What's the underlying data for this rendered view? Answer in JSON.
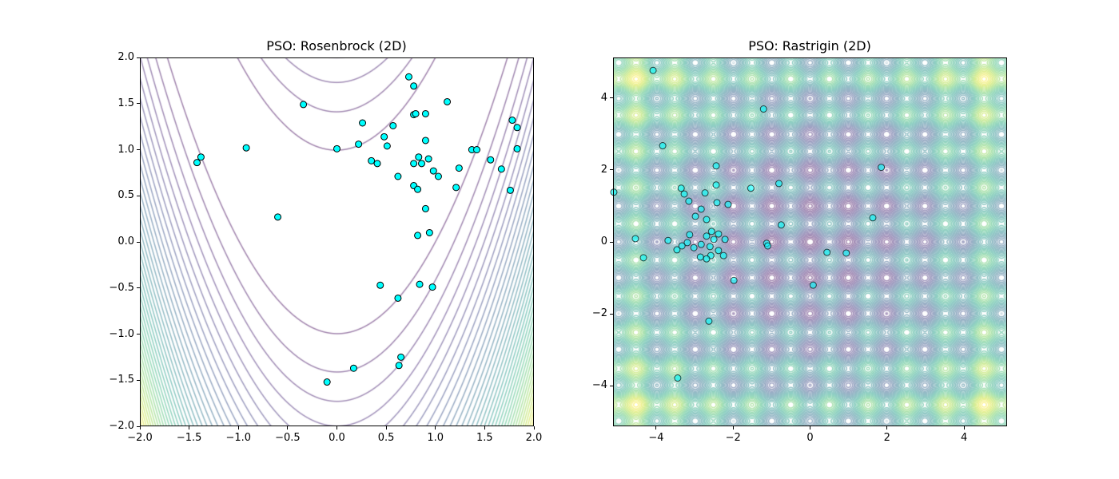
{
  "chart_data": [
    {
      "type": "scatter",
      "title": "PSO: Rosenbrock (2D)",
      "background": "contour",
      "function": "rosenbrock",
      "contour_levels_step": 100,
      "contour_vrange": [
        0,
        3600
      ],
      "colormap": "viridis",
      "xlim": [
        -2.0,
        2.0
      ],
      "ylim": [
        -2.0,
        2.0
      ],
      "xticks": [
        "−2.0",
        "−1.5",
        "−1.0",
        "−0.5",
        "0.0",
        "0.5",
        "1.0",
        "1.5",
        "2.0"
      ],
      "yticks": [
        "−2.0",
        "−1.5",
        "−1.0",
        "−0.5",
        "0.0",
        "0.5",
        "1.0",
        "1.5",
        "2.0"
      ],
      "xtick_values": [
        -2,
        -1.5,
        -1,
        -0.5,
        0,
        0.5,
        1,
        1.5,
        2
      ],
      "ytick_values": [
        -2,
        -1.5,
        -1,
        -0.5,
        0,
        0.5,
        1,
        1.5,
        2
      ],
      "point_color": "#00ffff",
      "point_alpha": 1.0,
      "points": [
        [
          -1.42,
          0.86
        ],
        [
          -1.38,
          0.92
        ],
        [
          -0.92,
          1.02
        ],
        [
          -0.34,
          1.49
        ],
        [
          -0.6,
          0.27
        ],
        [
          0.0,
          1.01
        ],
        [
          0.22,
          1.06
        ],
        [
          0.26,
          1.29
        ],
        [
          0.35,
          0.88
        ],
        [
          0.41,
          0.85
        ],
        [
          0.48,
          1.14
        ],
        [
          0.51,
          1.04
        ],
        [
          0.57,
          1.26
        ],
        [
          0.62,
          0.71
        ],
        [
          0.73,
          1.79
        ],
        [
          0.78,
          1.69
        ],
        [
          0.78,
          1.38
        ],
        [
          0.8,
          1.39
        ],
        [
          0.78,
          0.85
        ],
        [
          0.83,
          0.92
        ],
        [
          0.86,
          0.85
        ],
        [
          0.78,
          0.61
        ],
        [
          0.82,
          0.57
        ],
        [
          0.9,
          1.39
        ],
        [
          0.9,
          1.1
        ],
        [
          0.93,
          0.9
        ],
        [
          0.98,
          0.77
        ],
        [
          1.03,
          0.71
        ],
        [
          1.12,
          1.52
        ],
        [
          1.24,
          0.8
        ],
        [
          1.21,
          0.59
        ],
        [
          1.37,
          1.0
        ],
        [
          1.42,
          1.0
        ],
        [
          1.56,
          0.89
        ],
        [
          1.67,
          0.79
        ],
        [
          1.78,
          1.32
        ],
        [
          1.83,
          1.24
        ],
        [
          1.83,
          1.01
        ],
        [
          1.76,
          0.56
        ],
        [
          0.9,
          0.36
        ],
        [
          0.94,
          0.1
        ],
        [
          0.82,
          0.07
        ],
        [
          0.44,
          -0.47
        ],
        [
          0.84,
          -0.46
        ],
        [
          0.97,
          -0.49
        ],
        [
          0.62,
          -0.61
        ],
        [
          0.65,
          -1.25
        ],
        [
          0.63,
          -1.34
        ],
        [
          0.17,
          -1.37
        ],
        [
          -0.1,
          -1.52
        ]
      ]
    },
    {
      "type": "scatter",
      "title": "PSO: Rastrigin (2D)",
      "background": "contour",
      "function": "rastrigin",
      "contour_levels_step": 1.6,
      "contour_vrange": [
        0,
        80.7
      ],
      "colormap": "viridis",
      "xlim": [
        -5.12,
        5.12
      ],
      "ylim": [
        -5.12,
        5.12
      ],
      "xticks": [
        "−4",
        "−2",
        "0",
        "2",
        "4"
      ],
      "yticks": [
        "−4",
        "−2",
        "0",
        "2",
        "4"
      ],
      "xtick_values": [
        -4,
        -2,
        0,
        2,
        4
      ],
      "ytick_values": [
        -4,
        -2,
        0,
        2,
        4
      ],
      "point_color": "#00ffff",
      "point_alpha": 0.6,
      "points": [
        [
          -4.08,
          4.76
        ],
        [
          -3.83,
          2.67
        ],
        [
          -1.21,
          3.69
        ],
        [
          -5.1,
          1.38
        ],
        [
          -4.54,
          0.09
        ],
        [
          -4.33,
          -0.44
        ],
        [
          -3.69,
          0.04
        ],
        [
          -3.44,
          -3.78
        ],
        [
          -3.35,
          1.49
        ],
        [
          -3.27,
          1.33
        ],
        [
          -3.15,
          1.13
        ],
        [
          -3.13,
          0.2
        ],
        [
          -3.19,
          -0.02
        ],
        [
          -3.33,
          -0.11
        ],
        [
          -3.46,
          -0.22
        ],
        [
          -2.98,
          0.71
        ],
        [
          -2.83,
          0.91
        ],
        [
          -3.02,
          -0.16
        ],
        [
          -2.83,
          -0.07
        ],
        [
          -2.85,
          -0.42
        ],
        [
          -2.73,
          1.36
        ],
        [
          -2.69,
          0.62
        ],
        [
          -2.69,
          0.16
        ],
        [
          -2.56,
          0.29
        ],
        [
          -2.5,
          0.07
        ],
        [
          -2.58,
          -0.38
        ],
        [
          -2.69,
          -0.47
        ],
        [
          -2.6,
          -0.13
        ],
        [
          -2.44,
          1.58
        ],
        [
          -2.44,
          2.11
        ],
        [
          -2.42,
          1.09
        ],
        [
          -2.38,
          0.22
        ],
        [
          -2.38,
          -0.24
        ],
        [
          -2.25,
          -0.38
        ],
        [
          -2.21,
          0.07
        ],
        [
          -2.13,
          1.04
        ],
        [
          -1.98,
          -1.07
        ],
        [
          -2.63,
          -2.2
        ],
        [
          -1.54,
          1.49
        ],
        [
          -1.13,
          -0.04
        ],
        [
          -1.1,
          -0.11
        ],
        [
          -0.81,
          1.62
        ],
        [
          -0.75,
          0.47
        ],
        [
          0.08,
          -1.2
        ],
        [
          0.44,
          -0.29
        ],
        [
          0.94,
          -0.31
        ],
        [
          1.63,
          0.67
        ],
        [
          1.85,
          2.07
        ]
      ]
    }
  ]
}
